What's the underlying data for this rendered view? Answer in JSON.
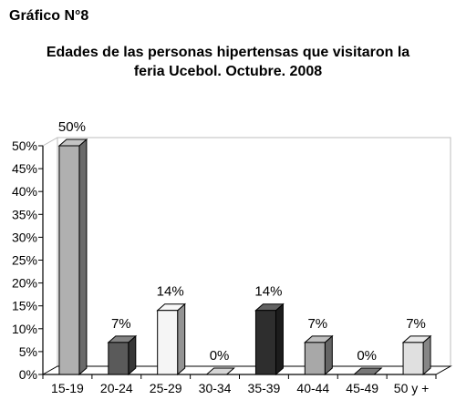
{
  "figure_label": "Gráfico N°8",
  "chart_data": {
    "type": "bar",
    "title": "Edades de las personas hipertensas que visitaron la feria Ucebol. Octubre. 2008",
    "title_lines": [
      "Edades de las personas hipertensas que visitaron la",
      "feria Ucebol. Octubre. 2008"
    ],
    "xlabel": "",
    "ylabel": "",
    "categories": [
      "15-19",
      "20-24",
      "25-29",
      "30-34",
      "35-39",
      "40-44",
      "45-49",
      "50 y +"
    ],
    "values": [
      50,
      7,
      14,
      0,
      14,
      7,
      0,
      7
    ],
    "value_labels": [
      "50%",
      "7%",
      "14%",
      "0%",
      "14%",
      "7%",
      "0%",
      "7%"
    ],
    "ylim": [
      0,
      50
    ],
    "yticks": [
      0,
      5,
      10,
      15,
      20,
      25,
      30,
      35,
      40,
      45,
      50
    ],
    "ytick_labels": [
      "0%",
      "5%",
      "10%",
      "15%",
      "20%",
      "25%",
      "30%",
      "35%",
      "40%",
      "45%",
      "50%"
    ],
    "grid": false,
    "legend": "none",
    "style": "3d-bars",
    "bar_colors": [
      "#b0b0b0",
      "#5a5a5a",
      "#f5f5f5",
      "#c8c8c8",
      "#2e2e2e",
      "#a8a8a8",
      "#4a4a4a",
      "#e0e0e0"
    ]
  }
}
